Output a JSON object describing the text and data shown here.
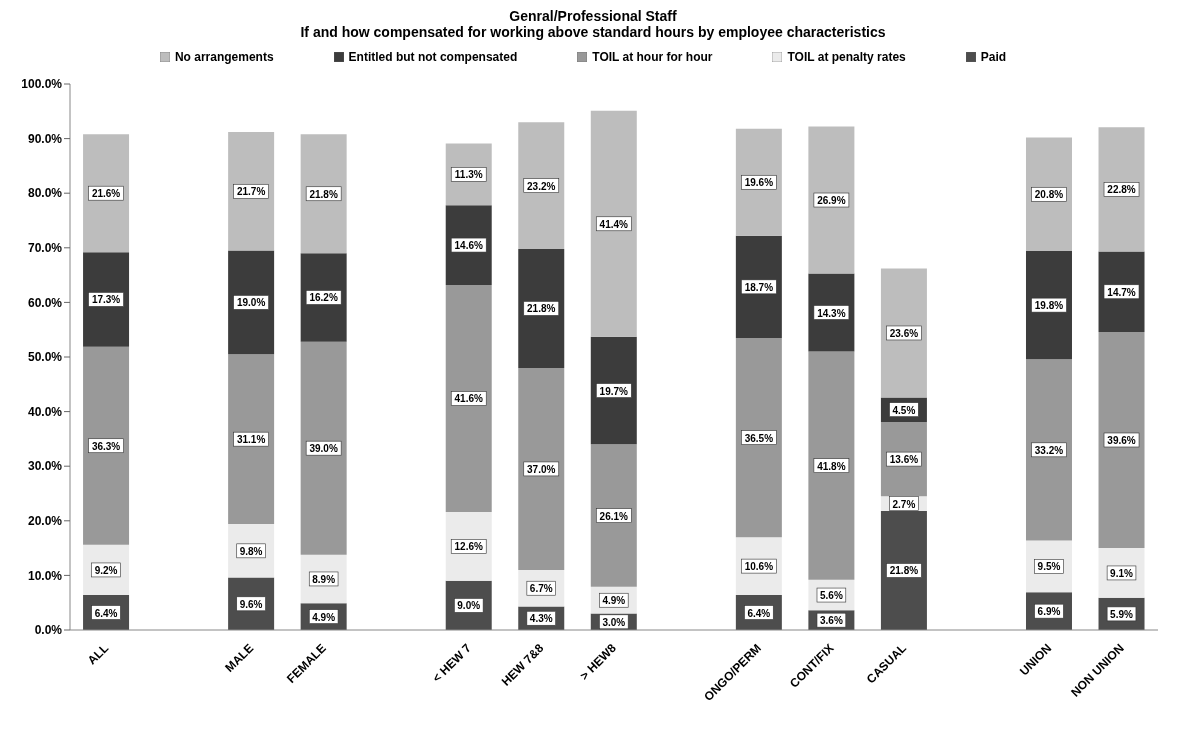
{
  "chart_data": {
    "type": "bar",
    "title": "Genral/Professional Staff",
    "subtitle": "If and how compensated for working above standard hours by employee characteristics",
    "categories": [
      "ALL",
      null,
      "MALE",
      "FEMALE",
      null,
      "< HEW 7",
      "HEW 7&8",
      "> HEW8",
      null,
      "ONGO/PERM",
      "CONT/FIX",
      "CASUAL",
      null,
      "UNION",
      "NON UNION"
    ],
    "stacked": true,
    "legend": "top",
    "grid": false,
    "ylim": [
      0,
      100
    ],
    "yticks": [
      {
        "value": 0,
        "label": "0.0%"
      },
      {
        "value": 10,
        "label": "10.0%"
      },
      {
        "value": 20,
        "label": "20.0%"
      },
      {
        "value": 30,
        "label": "30.0%"
      },
      {
        "value": 40,
        "label": "40.0%"
      },
      {
        "value": 50,
        "label": "50.0%"
      },
      {
        "value": 60,
        "label": "60.0%"
      },
      {
        "value": 70,
        "label": "70.0%"
      },
      {
        "value": 80,
        "label": "80.0%"
      },
      {
        "value": 90,
        "label": "90.0%"
      },
      {
        "value": 100,
        "label": "100.0%"
      }
    ],
    "series": [
      {
        "name": "Paid",
        "color": "#4d4d4d",
        "values": [
          6.4,
          null,
          9.6,
          4.9,
          null,
          9.0,
          4.3,
          3.0,
          null,
          6.4,
          3.6,
          21.8,
          null,
          6.9,
          5.9
        ],
        "value_labels": [
          "6.4%",
          null,
          "9.6%",
          "4.9%",
          null,
          "9.0%",
          "4.3%",
          "3.0%",
          null,
          "6.4%",
          "3.6%",
          "21.8%",
          null,
          "6.9%",
          "5.9%"
        ]
      },
      {
        "name": "TOIL at penalty rates",
        "color": "#ebebeb",
        "values": [
          9.2,
          null,
          9.8,
          8.9,
          null,
          12.6,
          6.7,
          4.9,
          null,
          10.6,
          5.6,
          2.7,
          null,
          9.5,
          9.1
        ],
        "value_labels": [
          "9.2%",
          null,
          "9.8%",
          "8.9%",
          null,
          "12.6%",
          "6.7%",
          "4.9%",
          null,
          "10.6%",
          "5.6%",
          "2.7%",
          null,
          "9.5%",
          "9.1%"
        ]
      },
      {
        "name": "TOIL at hour for hour",
        "color": "#999999",
        "values": [
          36.3,
          null,
          31.1,
          39.0,
          null,
          41.6,
          37.0,
          26.1,
          null,
          36.5,
          41.8,
          13.6,
          null,
          33.2,
          39.6
        ],
        "value_labels": [
          "36.3%",
          null,
          "31.1%",
          "39.0%",
          null,
          "41.6%",
          "37.0%",
          "26.1%",
          null,
          "36.5%",
          "41.8%",
          "13.6%",
          null,
          "33.2%",
          "39.6%"
        ]
      },
      {
        "name": "Entitled but not compensated",
        "color": "#3c3c3c",
        "values": [
          17.3,
          null,
          19.0,
          16.2,
          null,
          14.6,
          21.8,
          19.7,
          null,
          18.7,
          14.3,
          4.5,
          null,
          19.8,
          14.7
        ],
        "value_labels": [
          "17.3%",
          null,
          "19.0%",
          "16.2%",
          null,
          "14.6%",
          "21.8%",
          "19.7%",
          null,
          "18.7%",
          "14.3%",
          "4.5%",
          null,
          "19.8%",
          "14.7%"
        ]
      },
      {
        "name": "No arrangements",
        "color": "#bdbdbd",
        "values": [
          21.6,
          null,
          21.7,
          21.8,
          null,
          11.3,
          23.2,
          41.4,
          null,
          19.6,
          26.9,
          23.6,
          null,
          20.8,
          22.8
        ],
        "value_labels": [
          "21.6%",
          null,
          "21.7%",
          "21.8%",
          null,
          "11.3%",
          "23.2%",
          "41.4%",
          null,
          "19.6%",
          "26.9%",
          "23.6%",
          null,
          "20.8%",
          "22.8%"
        ]
      }
    ]
  }
}
